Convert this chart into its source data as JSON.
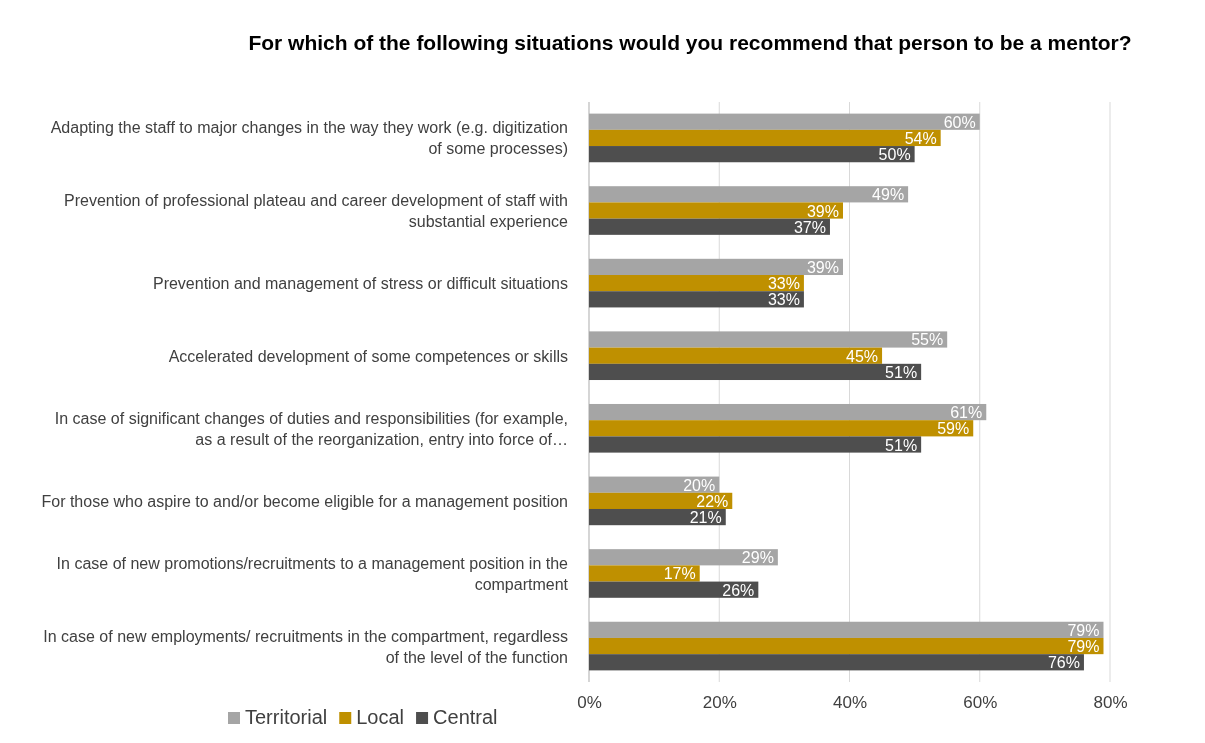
{
  "chart_data": {
    "type": "bar",
    "orientation": "horizontal",
    "title": "For which of the following situations would you recommend that person to be a mentor?",
    "categories": [
      "Adapting the staff to major changes in the way they work (e.g. digitization of some processes)",
      "Prevention of professional plateau and career development of staff with substantial experience",
      "Prevention and management of stress or difficult situations",
      "Accelerated development of some competences or skills",
      "In case of significant changes of duties and responsibilities (for example, as a result of the reorganization, entry into force of…",
      "For those who aspire to and/or become eligible for a management position",
      "In case of new promotions/recruitments to a management position in the compartment",
      "In case of new employments/ recruitments in the compartment, regardless of the level of the function"
    ],
    "series": [
      {
        "name": "Territorial",
        "color": "#a5a5a5",
        "values": [
          60,
          49,
          39,
          55,
          61,
          20,
          29,
          79
        ],
        "value_labels": [
          "60%",
          "49%",
          "39%",
          "55%",
          "61%",
          "20%",
          "29%",
          "79%"
        ]
      },
      {
        "name": "Local",
        "color": "#bf9000",
        "values": [
          54,
          39,
          33,
          45,
          59,
          22,
          17,
          79
        ],
        "value_labels": [
          "54%",
          "39%",
          "33%",
          "45%",
          "59%",
          "22%",
          "17%",
          "79%"
        ]
      },
      {
        "name": "Central",
        "color": "#4e4e4e",
        "values": [
          50,
          37,
          33,
          51,
          51,
          21,
          26,
          76
        ],
        "value_labels": [
          "50%",
          "37%",
          "33%",
          "51%",
          "51%",
          "21%",
          "26%",
          "76%"
        ]
      }
    ],
    "xlim": [
      0,
      80
    ],
    "xticks": [
      {
        "value": 0,
        "label": "0%"
      },
      {
        "value": 20,
        "label": "20%"
      },
      {
        "value": 40,
        "label": "40%"
      },
      {
        "value": 60,
        "label": "60%"
      },
      {
        "value": 80,
        "label": "80%"
      }
    ],
    "grid": "x",
    "legend": "bottom left"
  }
}
